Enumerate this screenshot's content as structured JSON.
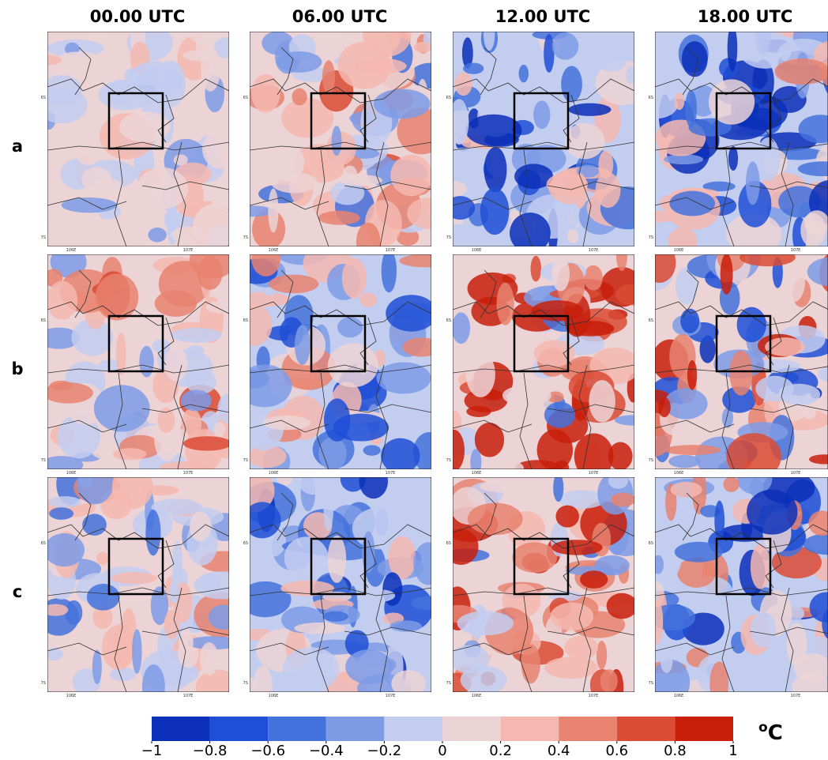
{
  "columns": [
    "00.00 UTC",
    "06.00 UTC",
    "12.00 UTC",
    "18.00 UTC"
  ],
  "rows": [
    "a",
    "b",
    "c"
  ],
  "panel_axis": {
    "y_labels": [
      "6S",
      "7S"
    ],
    "x_labels": [
      "106E",
      "107E"
    ]
  },
  "colorbar": {
    "colors": [
      "#0b2fb8",
      "#1f4fd6",
      "#4472dc",
      "#7e9be6",
      "#c3cdf0",
      "#ecd3d6",
      "#f4b8b0",
      "#e88370",
      "#db4b35",
      "#c81e0a"
    ],
    "lim": [
      -1,
      1
    ],
    "ticks": [
      {
        "value": -1,
        "label": "−1"
      },
      {
        "value": -0.8,
        "label": "−0.8"
      },
      {
        "value": -0.6,
        "label": "−0.6"
      },
      {
        "value": -0.4,
        "label": "−0.4"
      },
      {
        "value": -0.2,
        "label": "−0.2"
      },
      0,
      0.2,
      0.4,
      0.6,
      0.8,
      1
    ],
    "unit_superscript": "o",
    "unit": "C"
  }
}
